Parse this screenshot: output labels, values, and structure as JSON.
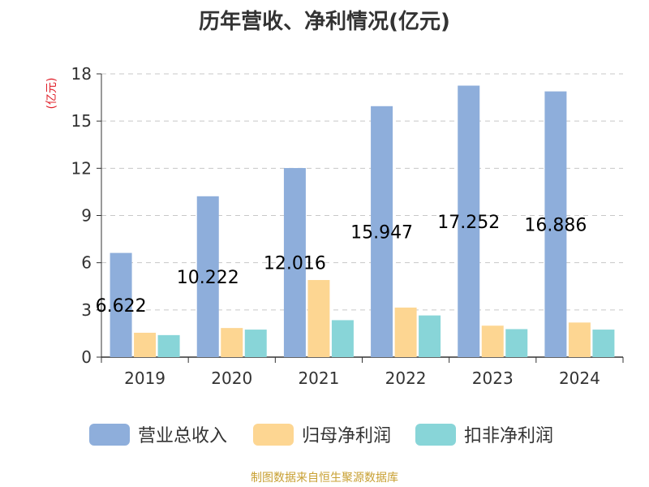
{
  "chart_data": {
    "type": "bar",
    "title": "历年营收、净利情况(亿元)",
    "ylabel": "(亿元)",
    "xlabel": "",
    "categories": [
      "2019",
      "2020",
      "2021",
      "2022",
      "2023",
      "2024"
    ],
    "ylim": [
      0,
      18
    ],
    "yticks": [
      0,
      3,
      6,
      9,
      12,
      15,
      18
    ],
    "grid": true,
    "legend_position": "bottom",
    "series": [
      {
        "name": "营业总收入",
        "color": "#8eaedb",
        "values": [
          6.622,
          10.222,
          12.016,
          15.947,
          17.252,
          16.886
        ],
        "labels": [
          "6.622",
          "10.222",
          "12.016",
          "15.947",
          "17.252",
          "16.886"
        ]
      },
      {
        "name": "归母净利润",
        "color": "#fdd692",
        "values": [
          1.55,
          1.85,
          4.9,
          3.15,
          2.0,
          2.2
        ]
      },
      {
        "name": "扣非净利润",
        "color": "#88d5d8",
        "values": [
          1.4,
          1.75,
          2.35,
          2.65,
          1.78,
          1.75
        ]
      }
    ]
  },
  "source": "制图数据来自恒生聚源数据库"
}
